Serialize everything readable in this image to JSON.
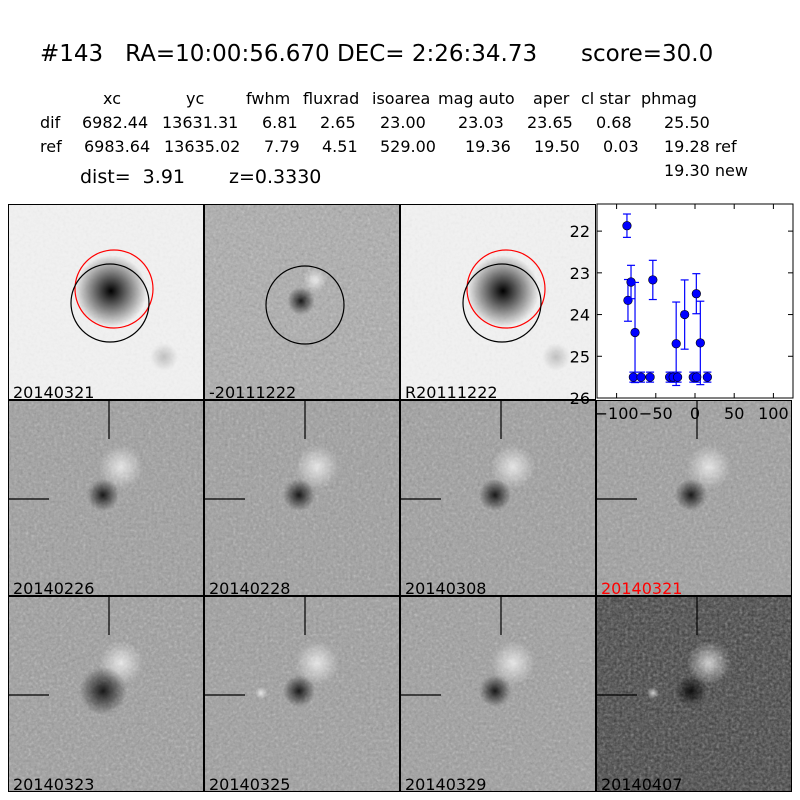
{
  "header": {
    "title": "#143   RA=10:00:56.670 DEC= 2:26:34.73      score=30.0",
    "columns": [
      "xc",
      "yc",
      "fwhm",
      "fluxrad",
      "isoarea",
      "mag auto",
      "aper",
      "cl star",
      "phmag"
    ],
    "rows": [
      {
        "label": "dif",
        "values": [
          "6982.44",
          "13631.31",
          "6.81",
          "2.65",
          "23.00",
          "23.03",
          "23.65",
          "0.68",
          "25.50"
        ]
      },
      {
        "label": "ref",
        "values": [
          "6983.64",
          "13635.02",
          "7.79",
          "4.51",
          "529.00",
          "19.36",
          "19.50",
          "0.03",
          "19.28 ref"
        ]
      }
    ],
    "new_phmag": "19.30 new",
    "dist": "dist=  3.91",
    "z": "z=0.3330"
  },
  "panels": [
    {
      "label": "20140321",
      "style": "ref",
      "color": "#000000"
    },
    {
      "label": "-20111222",
      "style": "diff",
      "color": "#000000"
    },
    {
      "label": "R20111222",
      "style": "ref",
      "color": "#000000"
    },
    {
      "label": "20140226",
      "style": "cut",
      "color": "#000000"
    },
    {
      "label": "20140228",
      "style": "cut",
      "color": "#000000"
    },
    {
      "label": "20140308",
      "style": "cut",
      "color": "#000000"
    },
    {
      "label": "20140321",
      "style": "cut",
      "color": "#ff0000"
    },
    {
      "label": "20140323",
      "style": "cut",
      "color": "#000000"
    },
    {
      "label": "20140325",
      "style": "cut",
      "color": "#000000"
    },
    {
      "label": "20140329",
      "style": "cut",
      "color": "#000000"
    },
    {
      "label": "20140407",
      "style": "cut-dark",
      "color": "#000000"
    }
  ],
  "chart_data": {
    "type": "scatter",
    "title": "",
    "xlabel": "",
    "ylabel": "",
    "xlim": [
      -125,
      125
    ],
    "ylim": [
      26,
      21.35
    ],
    "y_inverted": true,
    "xticks": [
      -100,
      -50,
      0,
      50,
      100
    ],
    "yticks": [
      22,
      23,
      24,
      25,
      26
    ],
    "grid": false,
    "marker_color": "#0000ff",
    "points": [
      {
        "x": -86.8,
        "y": 21.87,
        "err": 0.28
      },
      {
        "x": -85.5,
        "y": 23.66,
        "err": 0.5
      },
      {
        "x": -81.6,
        "y": 23.22,
        "err": 0.4
      },
      {
        "x": -76.5,
        "y": 24.43,
        "err": 1.2
      },
      {
        "x": -53.8,
        "y": 23.17,
        "err": 0.47
      },
      {
        "x": -24.0,
        "y": 24.7,
        "err": 1.0
      },
      {
        "x": -13.2,
        "y": 24.0,
        "err": 0.83
      },
      {
        "x": 1.7,
        "y": 23.5,
        "err": 0.48
      },
      {
        "x": 6.8,
        "y": 24.68,
        "err": 1.0
      },
      {
        "x": -78.6,
        "y": 25.5,
        "err": 0.12
      },
      {
        "x": -68.8,
        "y": 25.5,
        "err": 0.12
      },
      {
        "x": -57.3,
        "y": 25.5,
        "err": 0.12
      },
      {
        "x": -32.4,
        "y": 25.5,
        "err": 0.12
      },
      {
        "x": -27.8,
        "y": 25.5,
        "err": 0.12
      },
      {
        "x": -22.2,
        "y": 25.5,
        "err": 0.12
      },
      {
        "x": -2.2,
        "y": 25.5,
        "err": 0.12
      },
      {
        "x": 2.2,
        "y": 25.5,
        "err": 0.12
      },
      {
        "x": 15.8,
        "y": 25.5,
        "err": 0.12
      }
    ]
  }
}
